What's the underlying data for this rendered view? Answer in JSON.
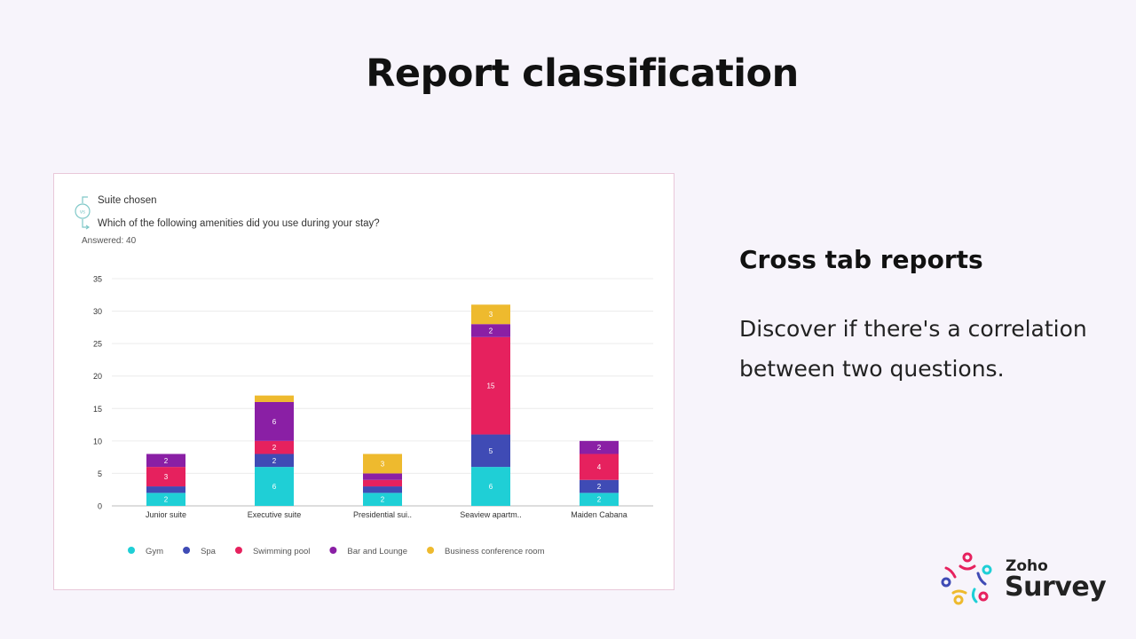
{
  "slide": {
    "title": "Report classification",
    "heading": "Cross tab reports",
    "body": "Discover if there's a correlation between two questions."
  },
  "card": {
    "question_1": "Suite chosen",
    "question_2": "Which of the following amenities did you use during your stay?",
    "answered": "Answered: 40"
  },
  "logo": {
    "brand": "Zoho",
    "product": "Survey"
  },
  "colors": {
    "Gym": "#1fcfd6",
    "Spa": "#3f4bb5",
    "Swimming pool": "#e6215e",
    "Bar and Lounge": "#8a1fa5",
    "Business conference room": "#eeba2e"
  },
  "chart_data": {
    "type": "bar",
    "stacked": true,
    "categories": [
      "Junior suite",
      "Executive suite",
      "Presidential sui..",
      "Seaview apartm..",
      "Maiden Cabana"
    ],
    "series": [
      {
        "name": "Gym",
        "values": [
          2,
          6,
          2,
          6,
          2
        ]
      },
      {
        "name": "Spa",
        "values": [
          1,
          2,
          1,
          5,
          2
        ]
      },
      {
        "name": "Swimming pool",
        "values": [
          3,
          2,
          1,
          15,
          4
        ]
      },
      {
        "name": "Bar and Lounge",
        "values": [
          2,
          6,
          1,
          2,
          2
        ]
      },
      {
        "name": "Business conference room",
        "values": [
          0,
          1,
          3,
          3,
          0
        ]
      }
    ],
    "ylim": [
      0,
      35
    ],
    "yticks": [
      0,
      5,
      10,
      15,
      20,
      25,
      30,
      35
    ],
    "grid": true,
    "legend": "bottom",
    "xlabel": "",
    "ylabel": ""
  }
}
